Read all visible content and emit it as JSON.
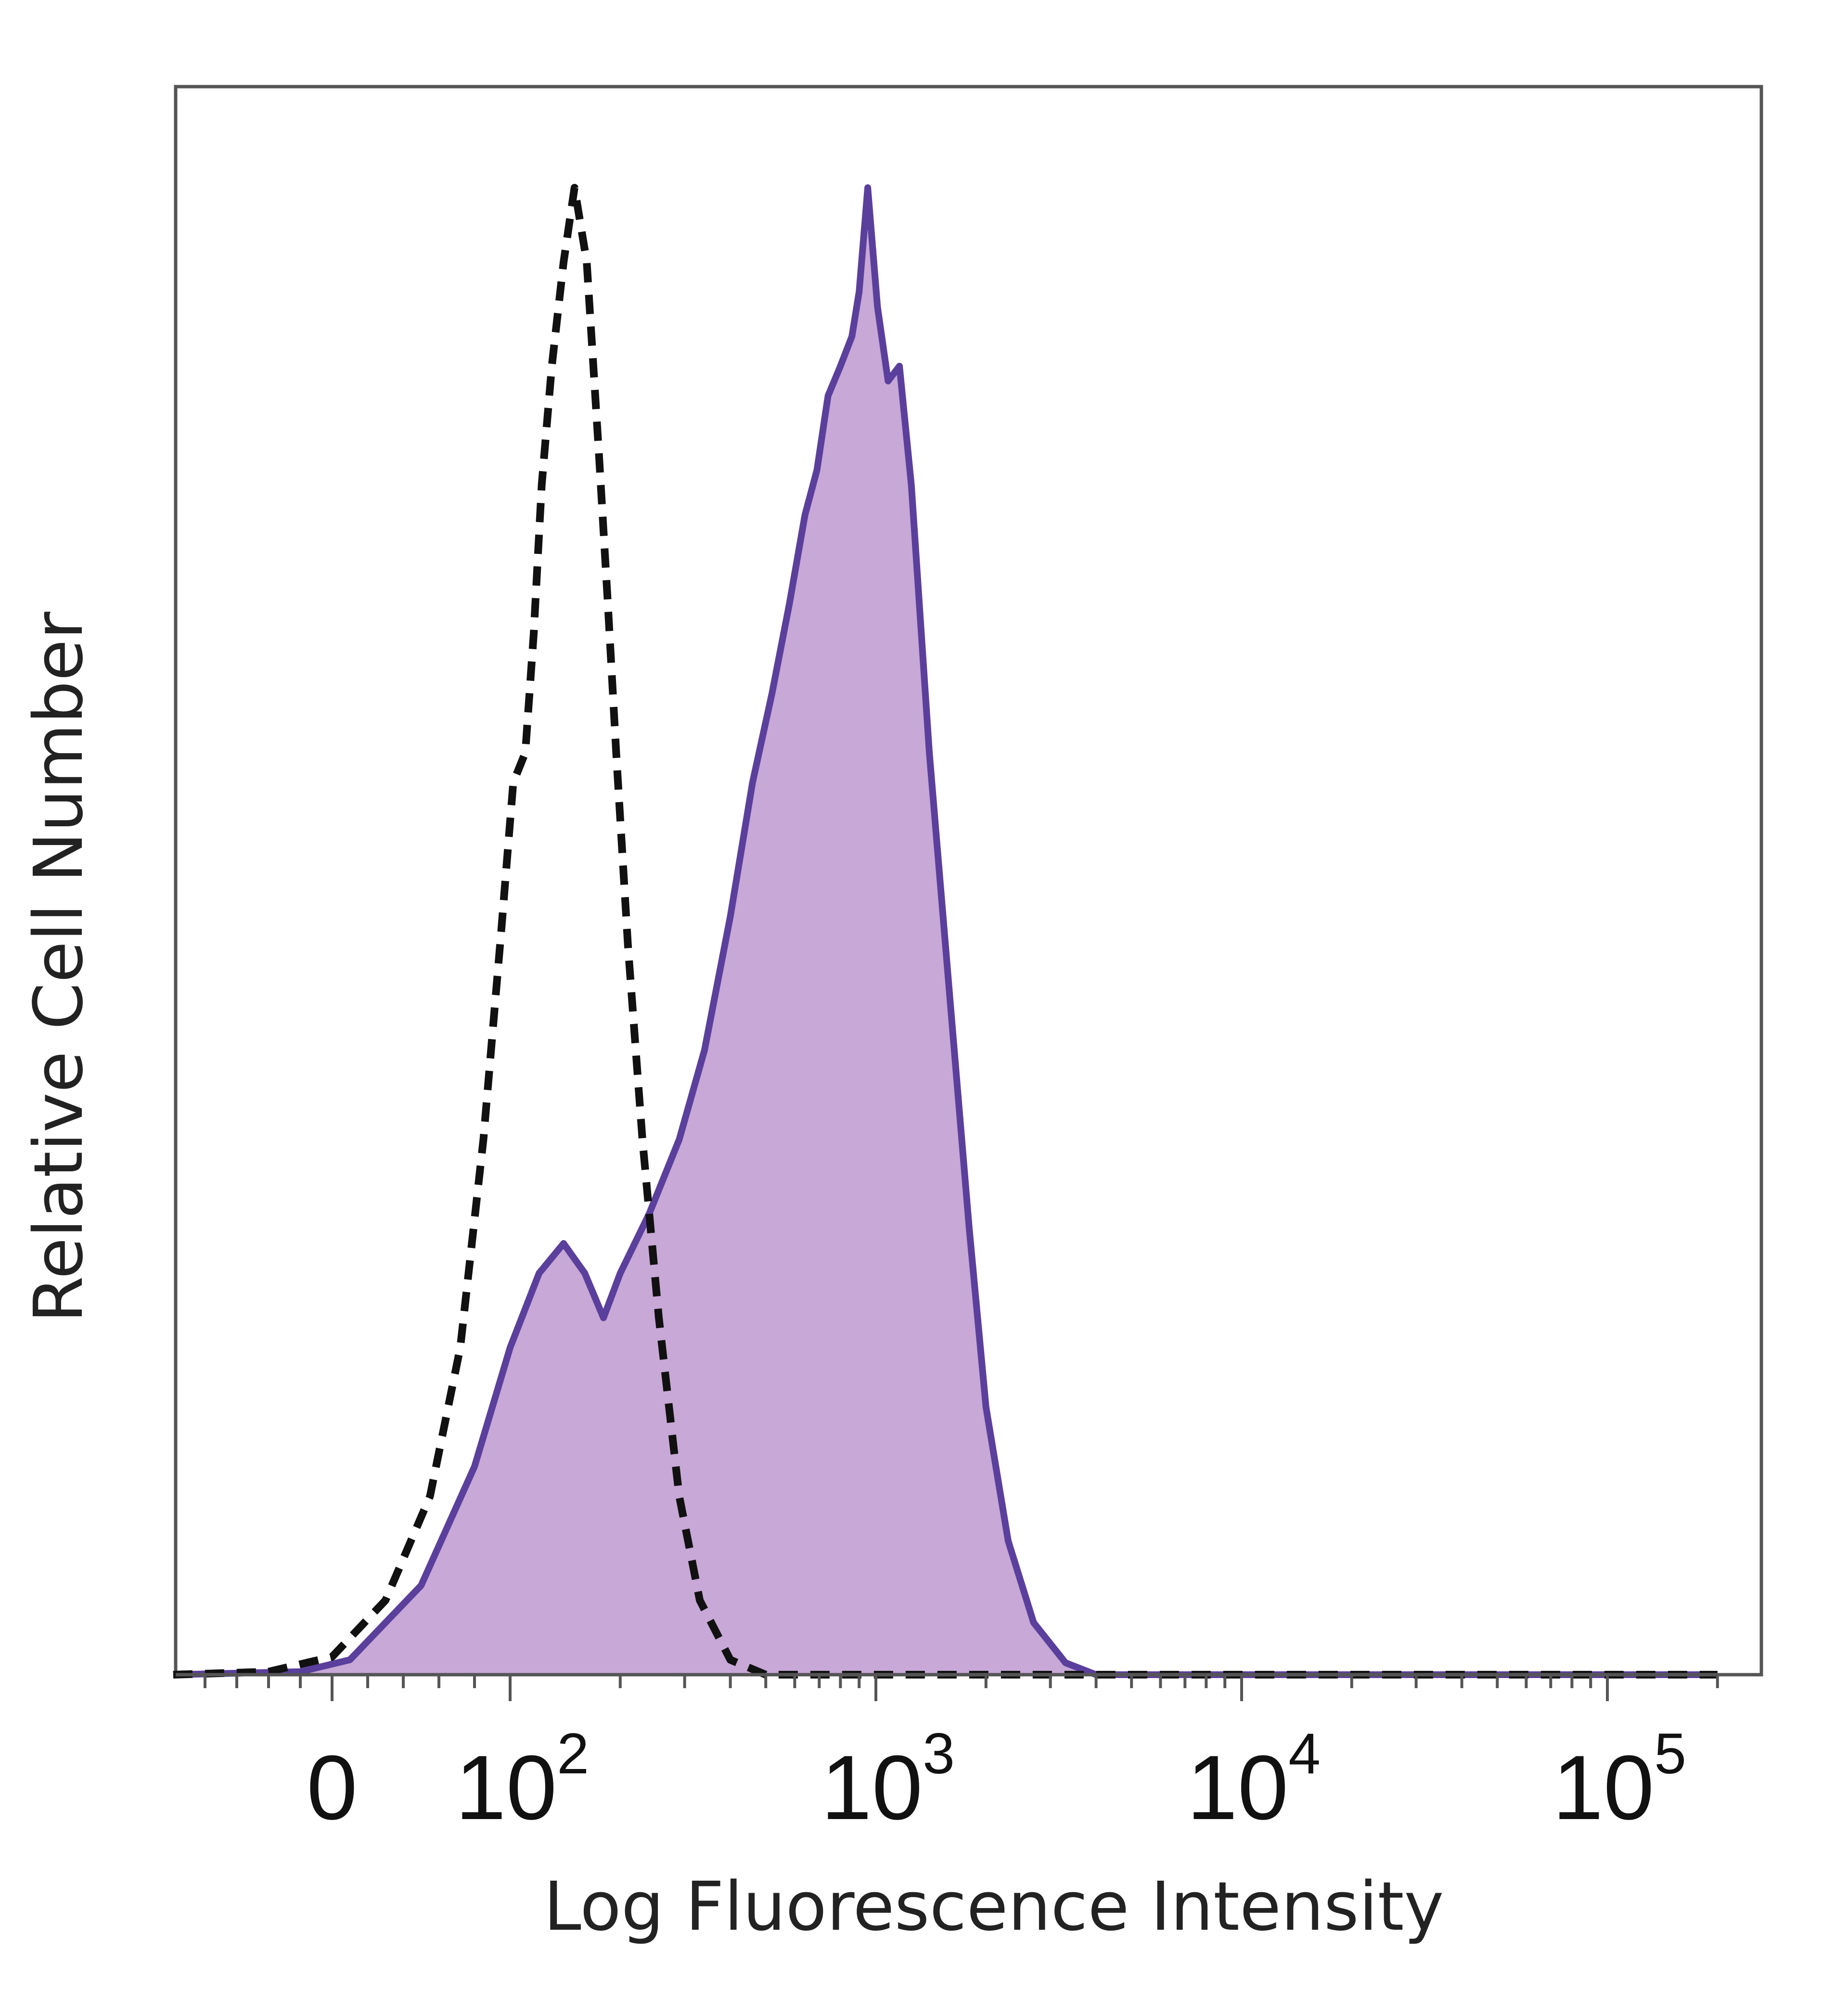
{
  "chart_data": {
    "type": "area",
    "title": "",
    "xlabel": "Log Fluorescence Intensity",
    "ylabel": "Relative Cell Number",
    "x_scale": "biexponential",
    "xlim": [
      -100,
      200000
    ],
    "ylim": [
      0,
      1.0
    ],
    "grid": false,
    "x_ticks": [
      {
        "value": 0,
        "base": "0",
        "exp": ""
      },
      {
        "value": 100,
        "base": "10",
        "exp": "2"
      },
      {
        "value": 1000,
        "base": "10",
        "exp": "3"
      },
      {
        "value": 10000,
        "base": "10",
        "exp": "4"
      },
      {
        "value": 100000,
        "base": "10",
        "exp": "5"
      }
    ],
    "series": [
      {
        "style": "dashed",
        "stroke": "#111111",
        "fill": "none",
        "points": [
          [
            -100,
            0
          ],
          [
            -40,
            0.002
          ],
          [
            0,
            0.012
          ],
          [
            30,
            0.05
          ],
          [
            55,
            0.12
          ],
          [
            72,
            0.22
          ],
          [
            85,
            0.36
          ],
          [
            95,
            0.5
          ],
          [
            102,
            0.6
          ],
          [
            110,
            0.62
          ],
          [
            116,
            0.7
          ],
          [
            122,
            0.8
          ],
          [
            130,
            0.88
          ],
          [
            140,
            0.95
          ],
          [
            150,
            1.0
          ],
          [
            162,
            0.95
          ],
          [
            175,
            0.82
          ],
          [
            185,
            0.72
          ],
          [
            195,
            0.62
          ],
          [
            210,
            0.49
          ],
          [
            230,
            0.36
          ],
          [
            255,
            0.24
          ],
          [
            290,
            0.12
          ],
          [
            330,
            0.05
          ],
          [
            400,
            0.01
          ],
          [
            500,
            0.0
          ],
          [
            200000,
            0.0
          ]
        ]
      },
      {
        "style": "solid-filled",
        "stroke": "#5b3f9c",
        "fill": "#c7a8d6",
        "points": [
          [
            -100,
            0
          ],
          [
            -20,
            0.002
          ],
          [
            10,
            0.01
          ],
          [
            50,
            0.06
          ],
          [
            80,
            0.14
          ],
          [
            100,
            0.22
          ],
          [
            120,
            0.27
          ],
          [
            140,
            0.29
          ],
          [
            160,
            0.27
          ],
          [
            180,
            0.24
          ],
          [
            200,
            0.27
          ],
          [
            240,
            0.31
          ],
          [
            290,
            0.36
          ],
          [
            340,
            0.42
          ],
          [
            400,
            0.51
          ],
          [
            460,
            0.6
          ],
          [
            520,
            0.66
          ],
          [
            580,
            0.72
          ],
          [
            640,
            0.78
          ],
          [
            690,
            0.81
          ],
          [
            740,
            0.86
          ],
          [
            800,
            0.88
          ],
          [
            860,
            0.9
          ],
          [
            900,
            0.93
          ],
          [
            950,
            1.0
          ],
          [
            1010,
            0.92
          ],
          [
            1080,
            0.87
          ],
          [
            1160,
            0.88
          ],
          [
            1250,
            0.8
          ],
          [
            1400,
            0.62
          ],
          [
            1600,
            0.45
          ],
          [
            1800,
            0.3
          ],
          [
            2000,
            0.18
          ],
          [
            2300,
            0.09
          ],
          [
            2700,
            0.035
          ],
          [
            3300,
            0.008
          ],
          [
            4000,
            0.0
          ],
          [
            200000,
            0.0
          ]
        ]
      }
    ]
  }
}
